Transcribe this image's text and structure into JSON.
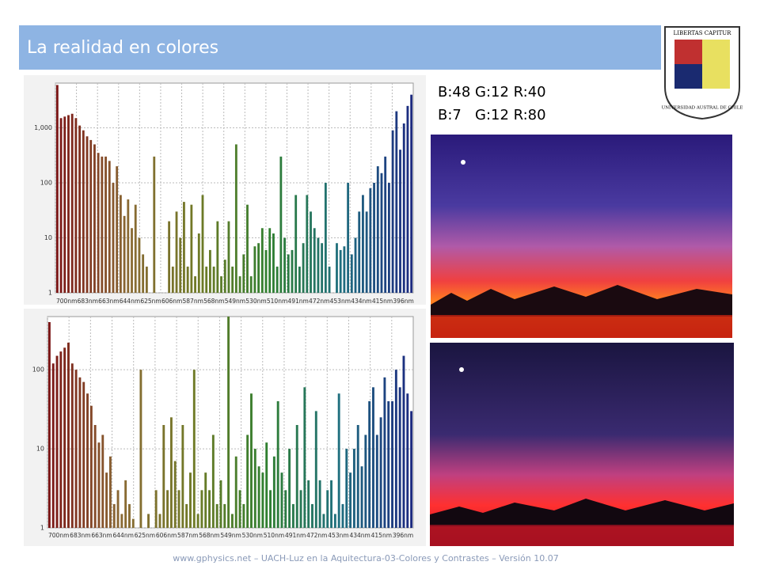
{
  "title": "La realidad en colores",
  "color_notes": [
    "B:48 G:12 R:40",
    "B:7   G:12 R:80"
  ],
  "logo": {
    "motto": "LIBERTAS CAPITUR",
    "name": "UNIVERSIDAD AUSTRAL DE CHILE"
  },
  "footer": "www.gphysics.net – UACH-Luz en la Aquitectura-03-Colores y Contrastes – Versión 10.07",
  "chart_data": [
    {
      "type": "bar",
      "log_scale": true,
      "grid": true,
      "color_stops": [
        "#7a1414",
        "#8a6a34",
        "#6f7a26",
        "#2f7f2f",
        "#1f6f7f",
        "#1c2a80"
      ],
      "x_labels": [
        "700nm",
        "683nm",
        "663nm",
        "644nm",
        "625nm",
        "606nm",
        "587nm",
        "568nm",
        "549nm",
        "530nm",
        "510nm",
        "491nm",
        "472nm",
        "453nm",
        "434nm",
        "415nm",
        "396nm"
      ],
      "ylim": [
        1,
        6500
      ],
      "yticks": [
        1,
        10,
        100,
        {
          "value": 1000,
          "label": "1,000"
        }
      ],
      "values": [
        6000,
        1500,
        1600,
        1700,
        1800,
        1500,
        1100,
        900,
        700,
        600,
        500,
        350,
        300,
        300,
        250,
        100,
        200,
        60,
        25,
        50,
        15,
        40,
        10,
        5,
        3,
        null,
        300,
        null,
        null,
        null,
        20,
        3,
        30,
        10,
        45,
        3,
        40,
        2,
        12,
        60,
        3,
        6,
        3,
        20,
        2,
        4,
        20,
        3,
        500,
        2,
        5,
        40,
        2,
        7,
        8,
        15,
        6,
        15,
        12,
        3,
        300,
        10,
        5,
        6,
        60,
        3,
        8,
        60,
        30,
        15,
        10,
        8,
        100,
        3,
        null,
        8,
        6,
        7,
        100,
        5,
        10,
        30,
        60,
        30,
        80,
        100,
        200,
        150,
        300,
        100,
        900,
        2000,
        400,
        1200,
        2500,
        4000
      ]
    },
    {
      "type": "bar",
      "log_scale": true,
      "grid": true,
      "color_stops": [
        "#7a1414",
        "#8a6a34",
        "#6f7a26",
        "#2f7f2f",
        "#1f6f7f",
        "#1c2a80"
      ],
      "x_labels": [
        "700nm",
        "683nm",
        "663nm",
        "644nm",
        "625nm",
        "606nm",
        "587nm",
        "568nm",
        "549nm",
        "530nm",
        "510nm",
        "491nm",
        "472nm",
        "453nm",
        "434nm",
        "415nm",
        "396nm"
      ],
      "ylim": [
        1,
        470
      ],
      "yticks": [
        1,
        10,
        100
      ],
      "values": [
        400,
        120,
        150,
        170,
        190,
        220,
        120,
        100,
        80,
        70,
        50,
        35,
        20,
        12,
        15,
        5,
        8,
        2,
        3,
        1.5,
        4,
        2,
        1.3,
        null,
        100,
        null,
        1.5,
        null,
        3,
        1.5,
        20,
        3,
        25,
        7,
        3,
        20,
        2,
        5,
        100,
        1.5,
        3,
        5,
        3,
        15,
        2,
        4,
        2,
        470,
        1.5,
        8,
        3,
        2,
        15,
        50,
        10,
        6,
        5,
        12,
        3,
        8,
        40,
        5,
        3,
        10,
        2,
        20,
        3,
        60,
        4,
        2,
        30,
        4,
        1.5,
        3,
        4,
        1.5,
        50,
        2,
        10,
        5,
        10,
        20,
        6,
        15,
        40,
        60,
        15,
        25,
        80,
        40,
        40,
        100,
        60,
        150,
        50,
        30
      ]
    }
  ]
}
